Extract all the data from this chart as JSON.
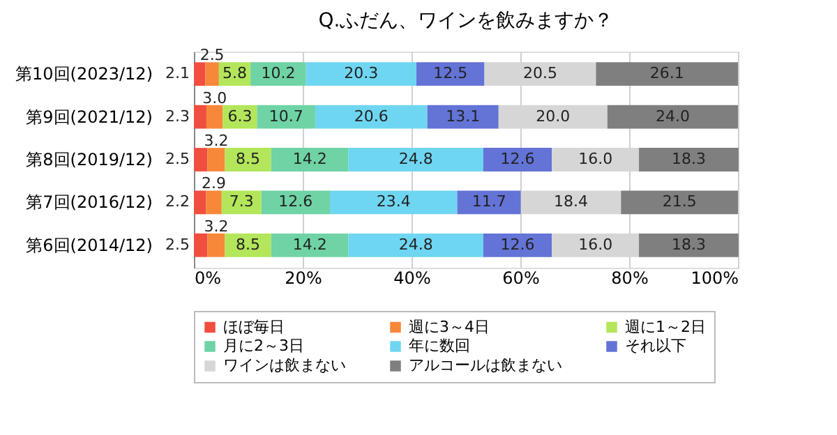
{
  "chart_data": {
    "type": "bar",
    "orientation": "horizontal",
    "stacked": true,
    "title": "Q.ふだん、ワインを飲みますか？",
    "categories": [
      "第10回(2023/12)",
      "第9回(2021/12)",
      "第8回(2019/12)",
      "第7回(2016/12)",
      "第6回(2014/12)"
    ],
    "series": [
      {
        "name": "ほぼ毎日",
        "color": "#f04e3e",
        "values": [
          2.1,
          2.3,
          2.5,
          2.2,
          2.5
        ],
        "value_labels": [
          "2.1",
          "2.3",
          "2.5",
          "2.2",
          "2.5"
        ]
      },
      {
        "name": "週に3～4日",
        "color": "#f7883a",
        "values": [
          2.5,
          3.0,
          3.2,
          2.9,
          3.2
        ],
        "value_labels": [
          "2.5",
          "3.0",
          "3.2",
          "2.9",
          "3.2"
        ]
      },
      {
        "name": "週に1～2日",
        "color": "#b3e65a",
        "values": [
          5.8,
          6.3,
          8.5,
          7.3,
          8.5
        ],
        "value_labels": [
          "5.8",
          "6.3",
          "8.5",
          "7.3",
          "8.5"
        ]
      },
      {
        "name": "月に2～3日",
        "color": "#6fd3a5",
        "values": [
          10.2,
          10.7,
          14.2,
          12.6,
          14.2
        ],
        "value_labels": [
          "10.2",
          "10.7",
          "14.2",
          "12.6",
          "14.2"
        ]
      },
      {
        "name": "年に数回",
        "color": "#6fd6f2",
        "values": [
          20.3,
          20.6,
          24.8,
          23.4,
          24.8
        ],
        "value_labels": [
          "20.3",
          "20.6",
          "24.8",
          "23.4",
          "24.8"
        ]
      },
      {
        "name": "それ以下",
        "color": "#6373d6",
        "values": [
          12.5,
          13.1,
          12.6,
          11.7,
          12.6
        ],
        "value_labels": [
          "12.5",
          "13.1",
          "12.6",
          "11.7",
          "12.6"
        ]
      },
      {
        "name": "ワインは飲まない",
        "color": "#d6d6d6",
        "values": [
          20.5,
          20.0,
          16.0,
          18.4,
          16.0
        ],
        "value_labels": [
          "20.5",
          "20.0",
          "16.0",
          "18.4",
          "16.0"
        ]
      },
      {
        "name": "アルコールは飲まない",
        "color": "#7f7f7f",
        "values": [
          26.1,
          24.0,
          18.3,
          21.5,
          18.3
        ],
        "value_labels": [
          "26.1",
          "24.0",
          "18.3",
          "21.5",
          "18.3"
        ]
      }
    ],
    "xlim": [
      0,
      100
    ],
    "xticks": [
      {
        "value": 0,
        "label": "0%"
      },
      {
        "value": 20,
        "label": "20%"
      },
      {
        "value": 40,
        "label": "40%"
      },
      {
        "value": 60,
        "label": "60%"
      },
      {
        "value": 80,
        "label": "80%"
      },
      {
        "value": 100,
        "label": "100%"
      }
    ],
    "grid": "x",
    "legend": "bottom"
  }
}
